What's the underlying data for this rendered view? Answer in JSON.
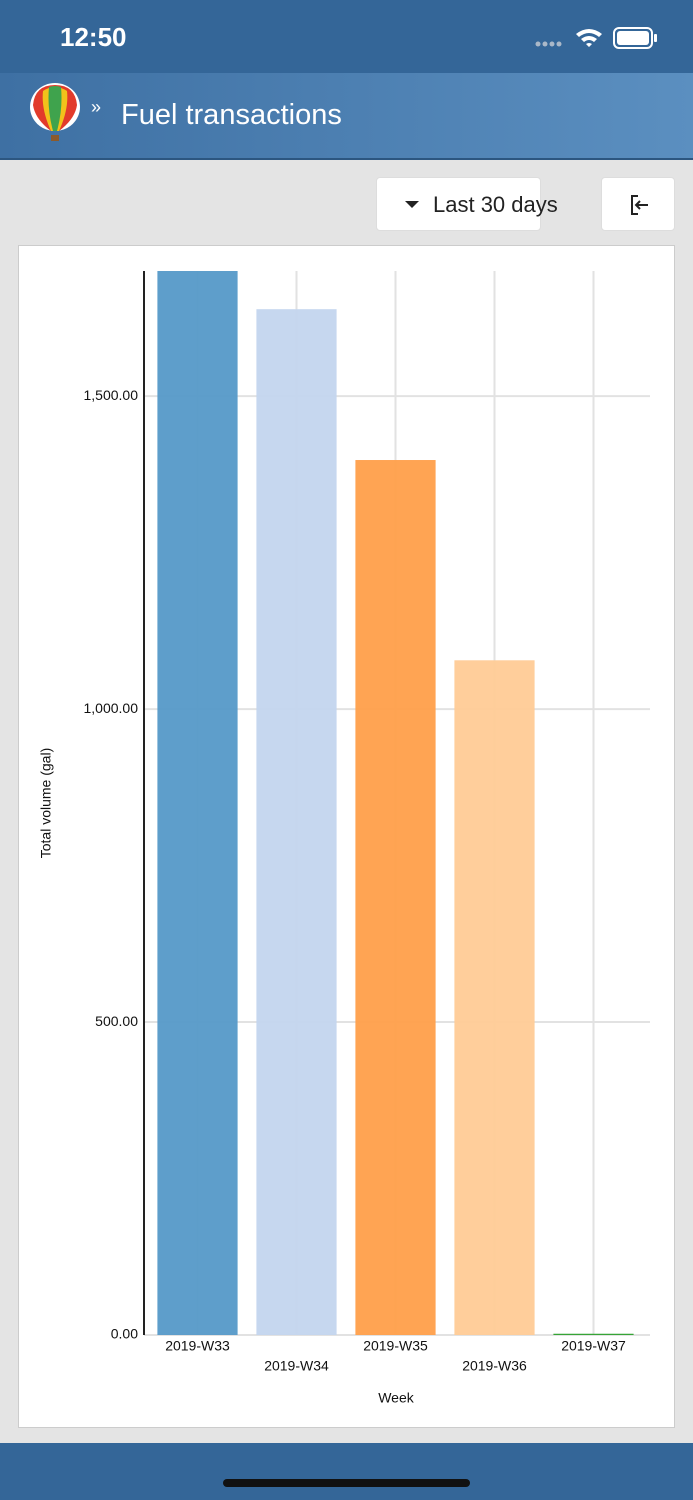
{
  "status_bar": {
    "time": "12:50"
  },
  "header": {
    "title": "Fuel transactions"
  },
  "toolbar": {
    "period": "Last 30 days"
  },
  "chart_data": {
    "type": "bar",
    "x_label": "Week",
    "y_label": "Total volume (gal)",
    "categories": [
      "2019-W33",
      "2019-W34",
      "2019-W35",
      "2019-W36",
      "2019-W37"
    ],
    "values": [
      1700,
      1639,
      1398,
      1078,
      2
    ],
    "colors": [
      "#5599c8",
      "#c3d5ee",
      "#ff9f4a",
      "#ffcb96",
      "#2ca02c"
    ],
    "ylim": [
      0,
      1700
    ],
    "yticks": [
      {
        "value": 0,
        "label": "0.00"
      },
      {
        "value": 500,
        "label": "500.00"
      },
      {
        "value": 1000,
        "label": "1,000.00"
      },
      {
        "value": 1500,
        "label": "1,500.00"
      }
    ],
    "grid": true
  }
}
